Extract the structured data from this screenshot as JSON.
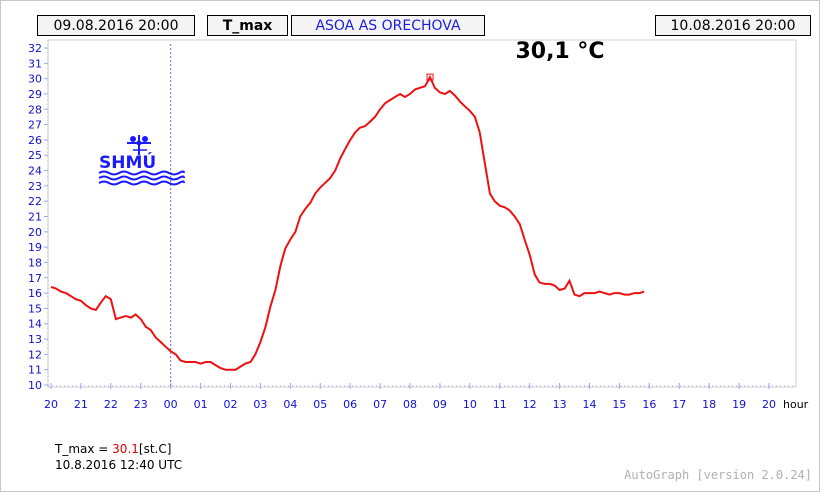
{
  "header": {
    "start": "09.08.2016 20:00",
    "variable": "T_max",
    "station": "ASOA AS ORECHOVA",
    "end": "10.08.2016 20:00"
  },
  "logo": {
    "text": "SHMÚ"
  },
  "max_label": "30,1 °C",
  "footer": {
    "var": "T_max",
    "eq": " = ",
    "value": "30.1",
    "unit": "[st.C]",
    "timestamp": "10.8.2016 12:40 UTC"
  },
  "version": "AutoGraph [version 2.0.24]",
  "colors": {
    "line": "#ee1111",
    "axis_text": "#1010d0",
    "grid": "#9fa6ef",
    "marker_line": "#6b6be8"
  },
  "chart_data": {
    "type": "line",
    "title": "30,1 °C",
    "xlabel": "hour",
    "ylabel": "",
    "xlim": [
      20,
      44
    ],
    "ylim": [
      10,
      32
    ],
    "x_ticks": [
      "20",
      "21",
      "22",
      "23",
      "00",
      "01",
      "02",
      "03",
      "04",
      "05",
      "06",
      "07",
      "08",
      "09",
      "10",
      "11",
      "12",
      "13",
      "14",
      "15",
      "16",
      "17",
      "18",
      "19",
      "20"
    ],
    "y_ticks": [
      10,
      11,
      12,
      13,
      14,
      15,
      16,
      17,
      18,
      19,
      20,
      21,
      22,
      23,
      24,
      25,
      26,
      27,
      28,
      29,
      30,
      31,
      32
    ],
    "grid": "dotted ticks",
    "max_marker": {
      "x": 32.67,
      "y": 30.1
    },
    "series": [
      {
        "x": [
          20.0,
          20.17,
          20.33,
          20.5,
          20.67,
          20.83,
          21.0,
          21.17,
          21.33,
          21.5,
          21.67,
          21.83,
          22.0,
          22.17,
          22.33,
          22.5,
          22.67,
          22.83,
          23.0,
          23.17,
          23.33,
          23.5,
          23.67,
          23.83,
          24.0,
          24.17,
          24.33,
          24.5,
          24.67,
          24.83,
          25.0,
          25.17,
          25.33,
          25.5,
          25.67,
          25.83,
          26.0,
          26.17,
          26.33,
          26.5,
          26.67,
          26.83,
          27.0,
          27.17,
          27.33,
          27.5,
          27.67,
          27.83,
          28.0,
          28.17,
          28.33,
          28.5,
          28.67,
          28.83,
          29.0,
          29.17,
          29.33,
          29.5,
          29.67,
          29.83,
          30.0,
          30.17,
          30.33,
          30.5,
          30.67,
          30.83,
          31.0,
          31.17,
          31.33,
          31.5,
          31.67,
          31.83,
          32.0,
          32.17,
          32.33,
          32.5,
          32.67,
          32.83,
          33.0,
          33.17,
          33.33,
          33.5,
          33.67,
          33.83,
          34.0,
          34.17,
          34.33,
          34.5,
          34.67,
          34.83,
          35.0,
          35.17,
          35.33,
          35.5,
          35.67,
          35.83,
          36.0,
          36.17,
          36.33,
          36.5,
          36.67,
          36.83,
          37.0,
          37.17,
          37.33,
          37.5,
          37.67,
          37.83,
          38.0,
          38.17,
          38.33,
          38.5,
          38.67,
          38.83,
          39.0,
          39.17,
          39.33,
          39.5,
          39.67,
          39.83
        ],
        "y": [
          16.4,
          16.3,
          16.1,
          16.0,
          15.8,
          15.6,
          15.5,
          15.2,
          15.0,
          14.9,
          15.4,
          15.8,
          15.6,
          14.3,
          14.4,
          14.5,
          14.4,
          14.6,
          14.3,
          13.8,
          13.6,
          13.1,
          12.8,
          12.5,
          12.2,
          12.0,
          11.6,
          11.5,
          11.5,
          11.5,
          11.4,
          11.5,
          11.5,
          11.3,
          11.1,
          11.0,
          11.0,
          11.0,
          11.2,
          11.4,
          11.5,
          12.0,
          12.8,
          13.8,
          15.1,
          16.2,
          17.8,
          18.9,
          19.5,
          20.0,
          21.0,
          21.5,
          21.9,
          22.5,
          22.9,
          23.2,
          23.5,
          24.0,
          24.8,
          25.4,
          26.0,
          26.5,
          26.8,
          26.9,
          27.2,
          27.5,
          28.0,
          28.4,
          28.6,
          28.8,
          29.0,
          28.8,
          29.0,
          29.3,
          29.4,
          29.5,
          30.1,
          29.4,
          29.1,
          29.0,
          29.2,
          28.9,
          28.5,
          28.2,
          27.9,
          27.5,
          26.5,
          24.5,
          22.5,
          22.0,
          21.7,
          21.6,
          21.4,
          21.0,
          20.5,
          19.5,
          18.5,
          17.2,
          16.7,
          16.6,
          16.6,
          16.5,
          16.2,
          16.3,
          16.8,
          15.9,
          15.8,
          16.0,
          16.0,
          16.0,
          16.1,
          16.0,
          15.9,
          16.0,
          16.0,
          15.9,
          15.9,
          16.0,
          16.0,
          16.1
        ]
      }
    ]
  }
}
